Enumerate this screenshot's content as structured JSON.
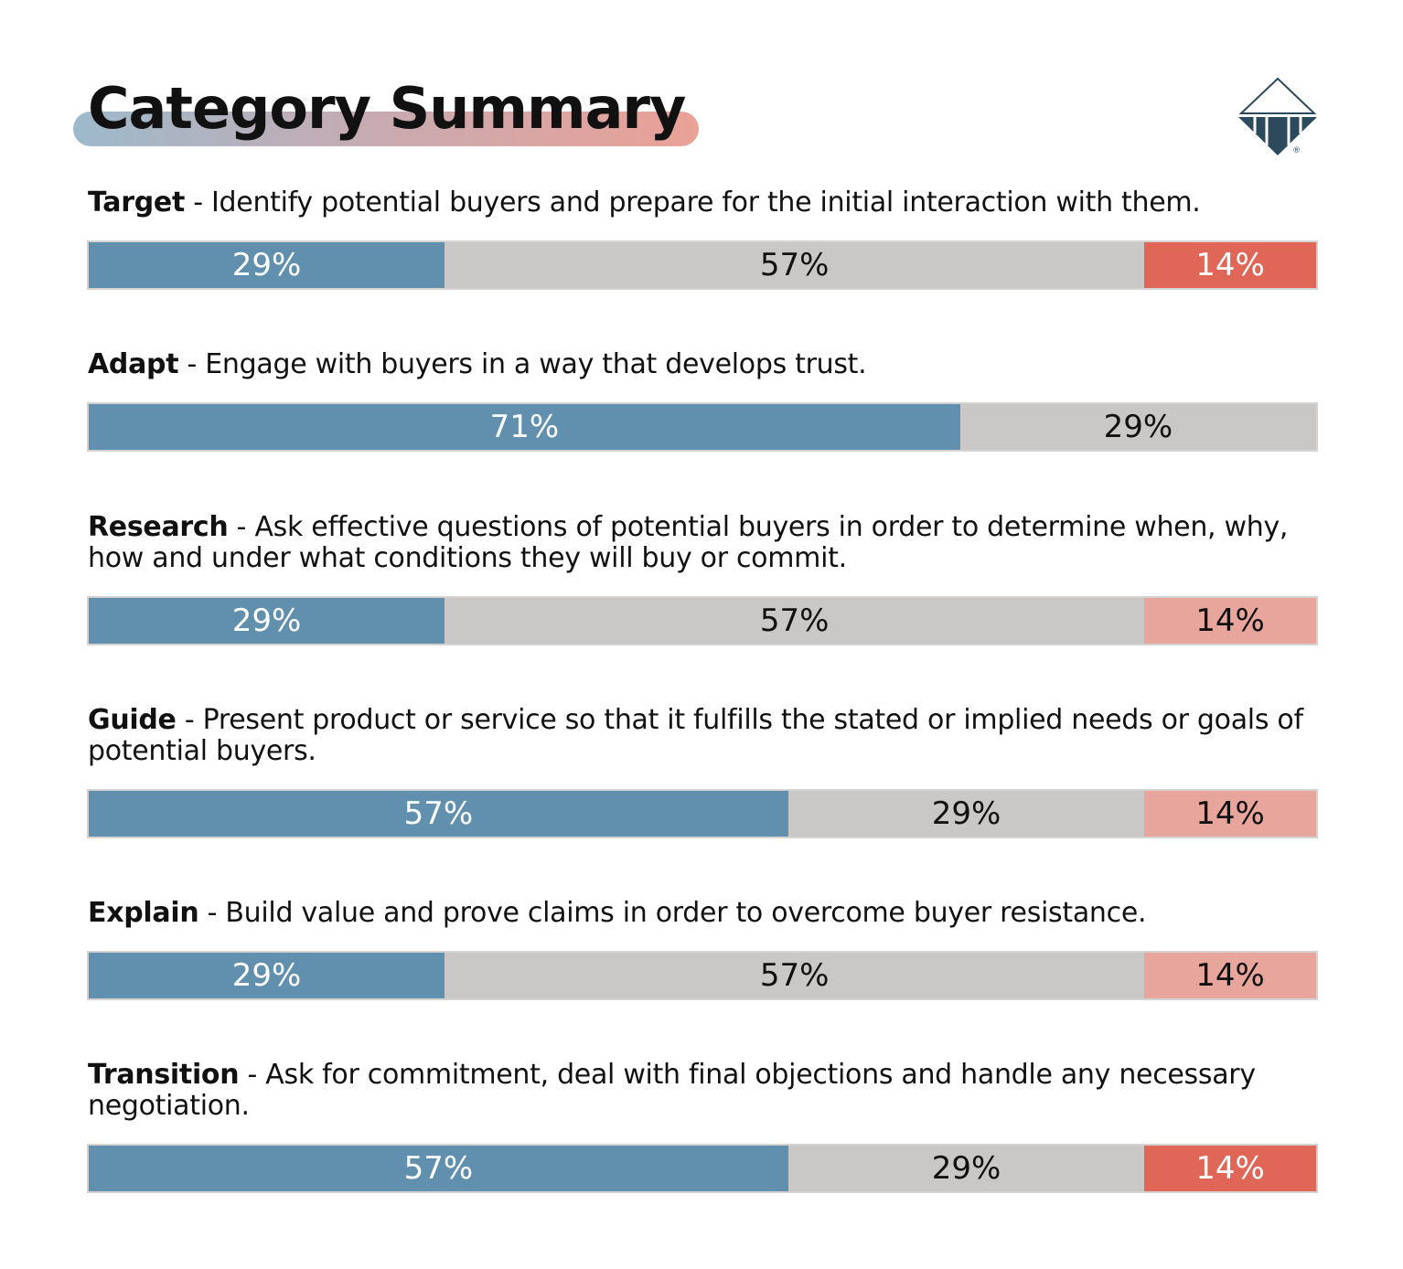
{
  "title": "Category Summary",
  "logo": {
    "name": "company-diamond-logo",
    "color": "#2c4a5c",
    "mark": "®"
  },
  "colors": {
    "blue": "#6090ae",
    "gray": "#c9c8c6",
    "red_dark": "#e06657",
    "red_light": "#e8a59c"
  },
  "chart_data": {
    "type": "bar",
    "orientation": "horizontal-stacked-100",
    "categories": [
      {
        "name": "Target",
        "description": "Identify potential buyers and prepare for the initial interaction with them.",
        "values": [
          29,
          57,
          14
        ],
        "colors": [
          "#6090ae",
          "#c9c8c6",
          "#e06657"
        ],
        "labels": [
          "29%",
          "57%",
          "14%"
        ]
      },
      {
        "name": "Adapt",
        "description": "Engage with buyers in a way that develops trust.",
        "values": [
          71,
          29
        ],
        "colors": [
          "#6090ae",
          "#c9c8c6"
        ],
        "labels": [
          "71%",
          "29%"
        ]
      },
      {
        "name": "Research",
        "description": "Ask effective questions of potential buyers in order to determine when, why, how and under what conditions they will buy or commit.",
        "values": [
          29,
          57,
          14
        ],
        "colors": [
          "#6090ae",
          "#c9c8c6",
          "#e8a59c"
        ],
        "labels": [
          "29%",
          "57%",
          "14%"
        ]
      },
      {
        "name": "Guide",
        "description": "Present product or service so that it fulfills the stated or implied needs or goals of potential buyers.",
        "values": [
          57,
          29,
          14
        ],
        "colors": [
          "#6090ae",
          "#c9c8c6",
          "#e8a59c"
        ],
        "labels": [
          "57%",
          "29%",
          "14%"
        ]
      },
      {
        "name": "Explain",
        "description": "Build value and prove claims in order to overcome buyer resistance.",
        "values": [
          29,
          57,
          14
        ],
        "colors": [
          "#6090ae",
          "#c9c8c6",
          "#e8a59c"
        ],
        "labels": [
          "29%",
          "57%",
          "14%"
        ]
      },
      {
        "name": "Transition",
        "description": "Ask for commitment, deal with final objections and handle any necessary negotiation.",
        "values": [
          57,
          29,
          14
        ],
        "colors": [
          "#6090ae",
          "#c9c8c6",
          "#e06657"
        ],
        "labels": [
          "57%",
          "29%",
          "14%"
        ]
      }
    ]
  }
}
